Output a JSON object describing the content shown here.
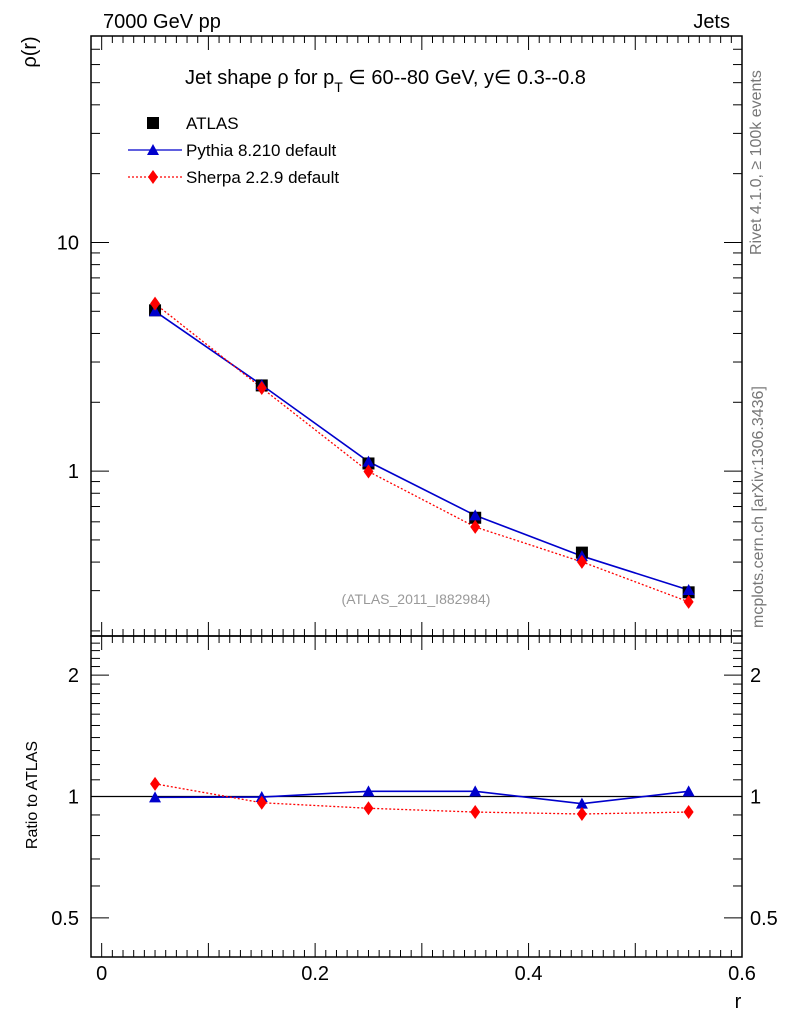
{
  "header": {
    "energy_label": "7000 GeV pp",
    "category_label": "Jets"
  },
  "title": {
    "prefix": "Jet shape ",
    "rho": "ρ",
    "mid": " for p",
    "sub": "T",
    "suffix": " ∈ 60--80 GeV, y∈ 0.3--0.8"
  },
  "side_labels": {
    "rivet": "Rivet 4.1.0, ≥ 100k events",
    "mcplots": "mcplots.cern.ch [arXiv:1306.3436]"
  },
  "watermark": "(ATLAS_2011_I882984)",
  "colors": {
    "atlas": "#000000",
    "pythia": "#0000cc",
    "sherpa": "#ff0000"
  },
  "chart_data": [
    {
      "type": "line",
      "name": "main",
      "ylabel": "ρ(r)",
      "yscale": "log",
      "ylim": [
        0.19,
        80
      ],
      "xlim": [
        -0.01,
        0.6
      ],
      "ytick_labels": [
        "10",
        "1"
      ],
      "series": [
        {
          "name": "ATLAS",
          "marker": "square",
          "x": [
            0.05,
            0.15,
            0.25,
            0.35,
            0.45,
            0.55
          ],
          "y": [
            5.05,
            2.37,
            1.08,
            0.625,
            0.44,
            0.295
          ]
        },
        {
          "name": "Pythia 8.210 default",
          "marker": "triangle",
          "line": "solid",
          "x": [
            0.05,
            0.15,
            0.25,
            0.35,
            0.45,
            0.55
          ],
          "y": [
            5.0,
            2.38,
            1.1,
            0.64,
            0.425,
            0.302
          ]
        },
        {
          "name": "Sherpa 2.2.9 default",
          "marker": "diamond",
          "line": "dotted",
          "x": [
            0.05,
            0.15,
            0.25,
            0.35,
            0.45,
            0.55
          ],
          "y": [
            5.4,
            2.31,
            0.996,
            0.57,
            0.401,
            0.268
          ]
        }
      ],
      "legend": [
        "ATLAS",
        "Pythia 8.210 default",
        "Sherpa 2.2.9 default"
      ],
      "legend_position": "top-left"
    },
    {
      "type": "line",
      "name": "ratio",
      "ylabel": "Ratio to ATLAS",
      "xlabel": "r",
      "yscale": "log",
      "ylim": [
        0.4,
        2.5
      ],
      "xlim": [
        -0.01,
        0.6
      ],
      "xtick_labels": [
        "0",
        "0.2",
        "0.4",
        "0.6"
      ],
      "ytick_labels": [
        "2",
        "1",
        "0.5"
      ],
      "reference_line": 1,
      "series": [
        {
          "name": "Pythia 8.210 default",
          "marker": "triangle",
          "line": "solid",
          "x": [
            0.05,
            0.15,
            0.25,
            0.35,
            0.45,
            0.55
          ],
          "y": [
            0.995,
            0.997,
            1.03,
            1.03,
            0.96,
            1.03
          ]
        },
        {
          "name": "Sherpa 2.2.9 default",
          "marker": "diamond",
          "line": "dotted",
          "x": [
            0.05,
            0.15,
            0.25,
            0.35,
            0.45,
            0.55
          ],
          "y": [
            1.075,
            0.965,
            0.935,
            0.915,
            0.905,
            0.915
          ]
        }
      ]
    }
  ]
}
